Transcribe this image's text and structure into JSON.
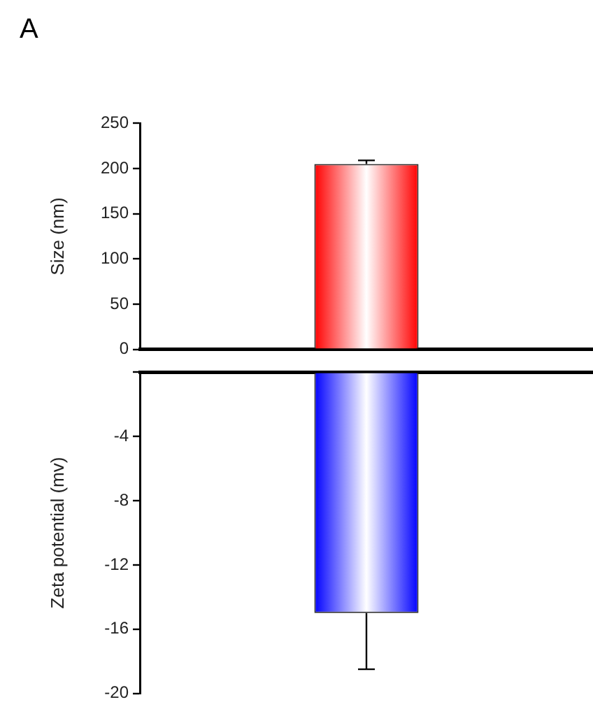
{
  "chart_data": [
    {
      "type": "bar",
      "title": "A",
      "ylabel": "Size (nm)",
      "categories": [
        null
      ],
      "series": [
        {
          "color": "#ff0000",
          "values": [
            205
          ],
          "errors": [
            [
              205,
              209
            ]
          ]
        }
      ],
      "ylim": [
        0,
        250
      ],
      "yticks": [
        0,
        50,
        100,
        150,
        200,
        250
      ],
      "grid": false,
      "tick_labels": "y"
    },
    {
      "type": "bar",
      "ylabel": "Zeta potential (mv)",
      "categories": [
        null
      ],
      "series": [
        {
          "color": "#0000ff",
          "values": [
            -15
          ],
          "errors": [
            [
              -18.5,
              -15
            ]
          ]
        }
      ],
      "ylim": [
        -20,
        0
      ],
      "yticks": [
        -20,
        -16,
        -12,
        -8,
        -4,
        {
          "value": 0,
          "label": null
        }
      ],
      "grid": false,
      "tick_labels": "y"
    }
  ]
}
